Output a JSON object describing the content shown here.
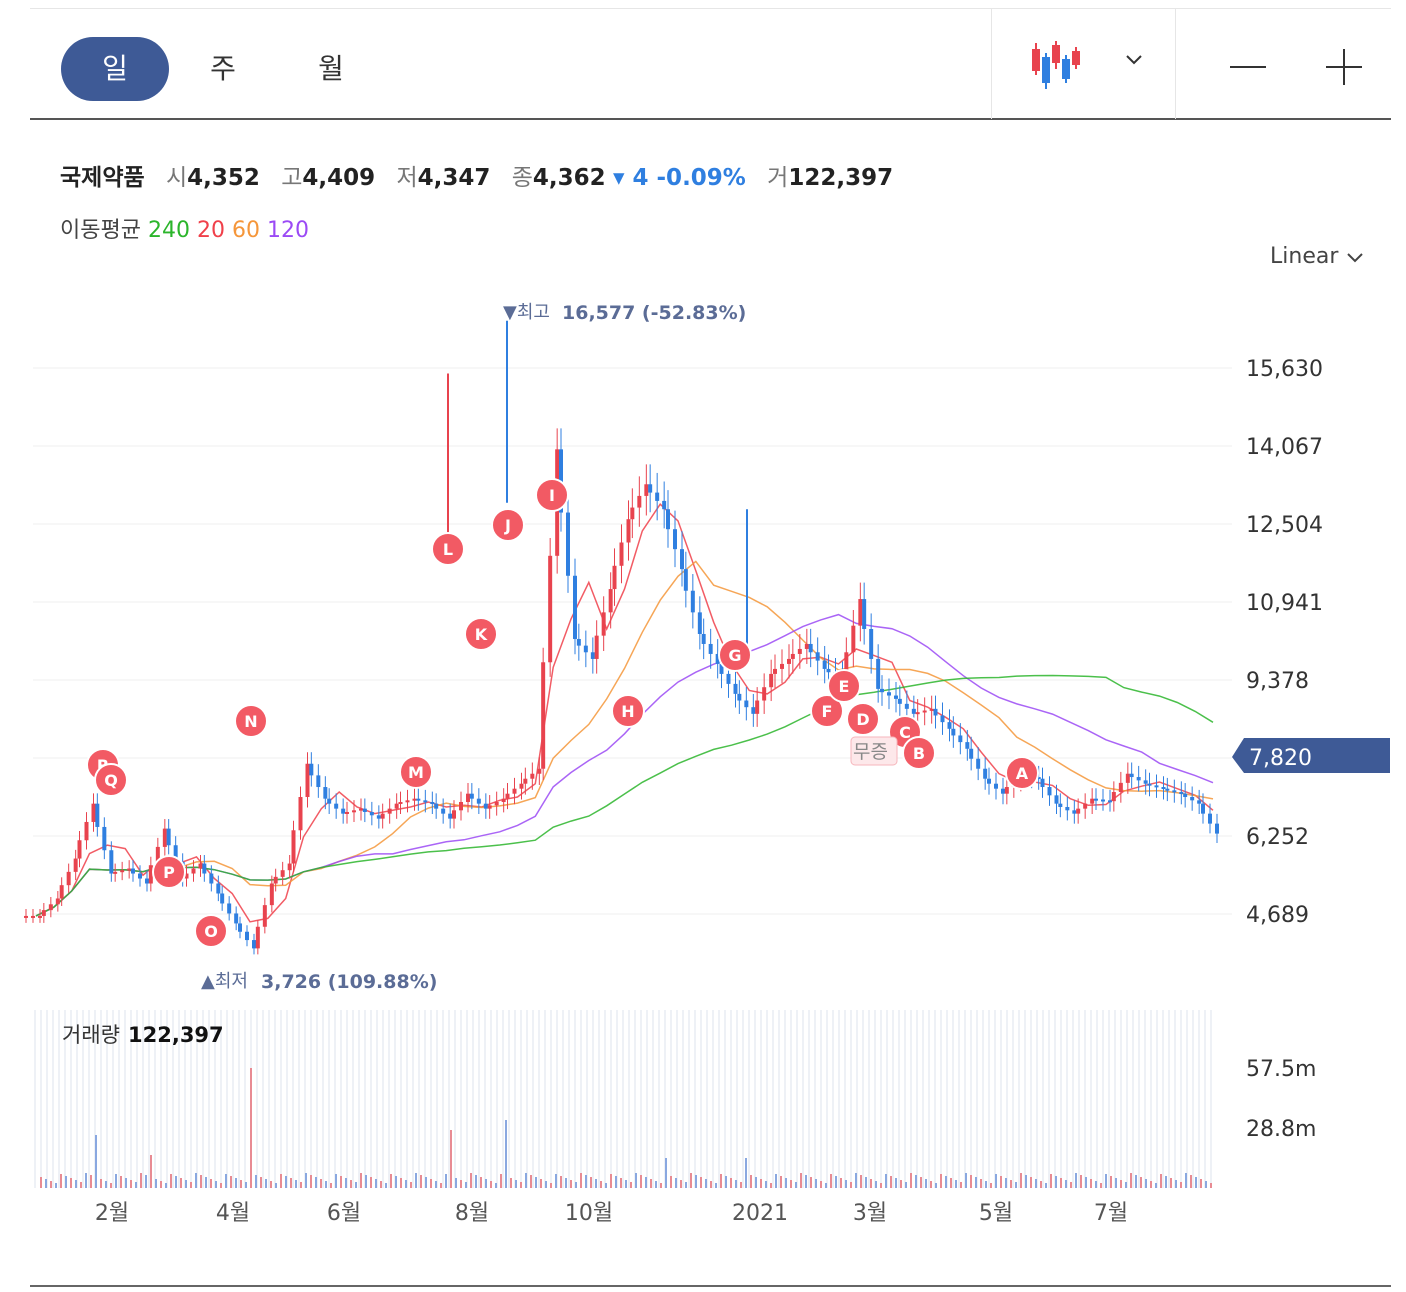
{
  "toolbar": {
    "periods": [
      {
        "label": "일",
        "active": true
      },
      {
        "label": "주",
        "active": false
      },
      {
        "label": "월",
        "active": false
      }
    ],
    "chart_type_icon": "candlestick-icon",
    "zoom_out_icon": "minus-icon",
    "zoom_in_icon": "plus-icon"
  },
  "quote": {
    "name": "국제약품",
    "open_label": "시",
    "open": "4,352",
    "high_label": "고",
    "high": "4,409",
    "low_label": "저",
    "low": "4,347",
    "close_label": "종",
    "close": "4,362",
    "change": "▾ 4 -0.09%",
    "volume_label": "거",
    "volume": "122,397"
  },
  "moving_average": {
    "label": "이동평균",
    "periods": [
      {
        "value": "240",
        "color": "#2bb52b"
      },
      {
        "value": "20",
        "color": "#f0404a"
      },
      {
        "value": "60",
        "color": "#f5963a"
      },
      {
        "value": "120",
        "color": "#9b4af5"
      }
    ]
  },
  "scale_selector": "Linear",
  "colors": {
    "up": "#e8434e",
    "down": "#2f7fe0",
    "marker": "#f25a64",
    "current": "#3e5a96"
  },
  "chart_data": {
    "type": "candlestick",
    "y_ticks": [
      "15,630",
      "14,067",
      "12,504",
      "10,941",
      "9,378",
      "6,252",
      "4,689"
    ],
    "current_price": "7,820",
    "high_annotation": "▼최고",
    "high_value": "16,577 (-52.83%)",
    "low_annotation": "▲최저",
    "low_value": "3,726 (109.88%)",
    "x_ticks": [
      "2월",
      "4월",
      "6월",
      "8월",
      "10월",
      "2021",
      "3월",
      "5월",
      "7월"
    ],
    "markers": [
      "R",
      "Q",
      "P",
      "O",
      "N",
      "M",
      "L",
      "K",
      "J",
      "I",
      "H",
      "G",
      "F",
      "E",
      "D",
      "C",
      "B",
      "A"
    ],
    "event_label": "무증",
    "close_series": [
      4650,
      5000,
      5800,
      6900,
      5500,
      5600,
      5300,
      6400,
      5400,
      5700,
      5100,
      4500,
      4000,
      5300,
      5700,
      7700,
      7000,
      6700,
      6800,
      6600,
      6900,
      7000,
      6900,
      6600,
      7100,
      6800,
      7000,
      7300,
      7600,
      14000,
      10200,
      9800,
      11200,
      12600,
      13300,
      12800,
      11600,
      10300,
      9700,
      9100,
      8700,
      9500,
      9800,
      10100,
      9600,
      9400,
      11000,
      9200,
      9000,
      8700,
      8800,
      8400,
      8000,
      7400,
      7100,
      7500,
      7400,
      6900,
      6700,
      7000,
      6950,
      7500,
      7300,
      7200,
      7100,
      6900,
      6300
    ]
  },
  "volume": {
    "label": "거래량",
    "value": "122,397",
    "y_ticks": [
      "57.5m",
      "28.8m"
    ]
  }
}
